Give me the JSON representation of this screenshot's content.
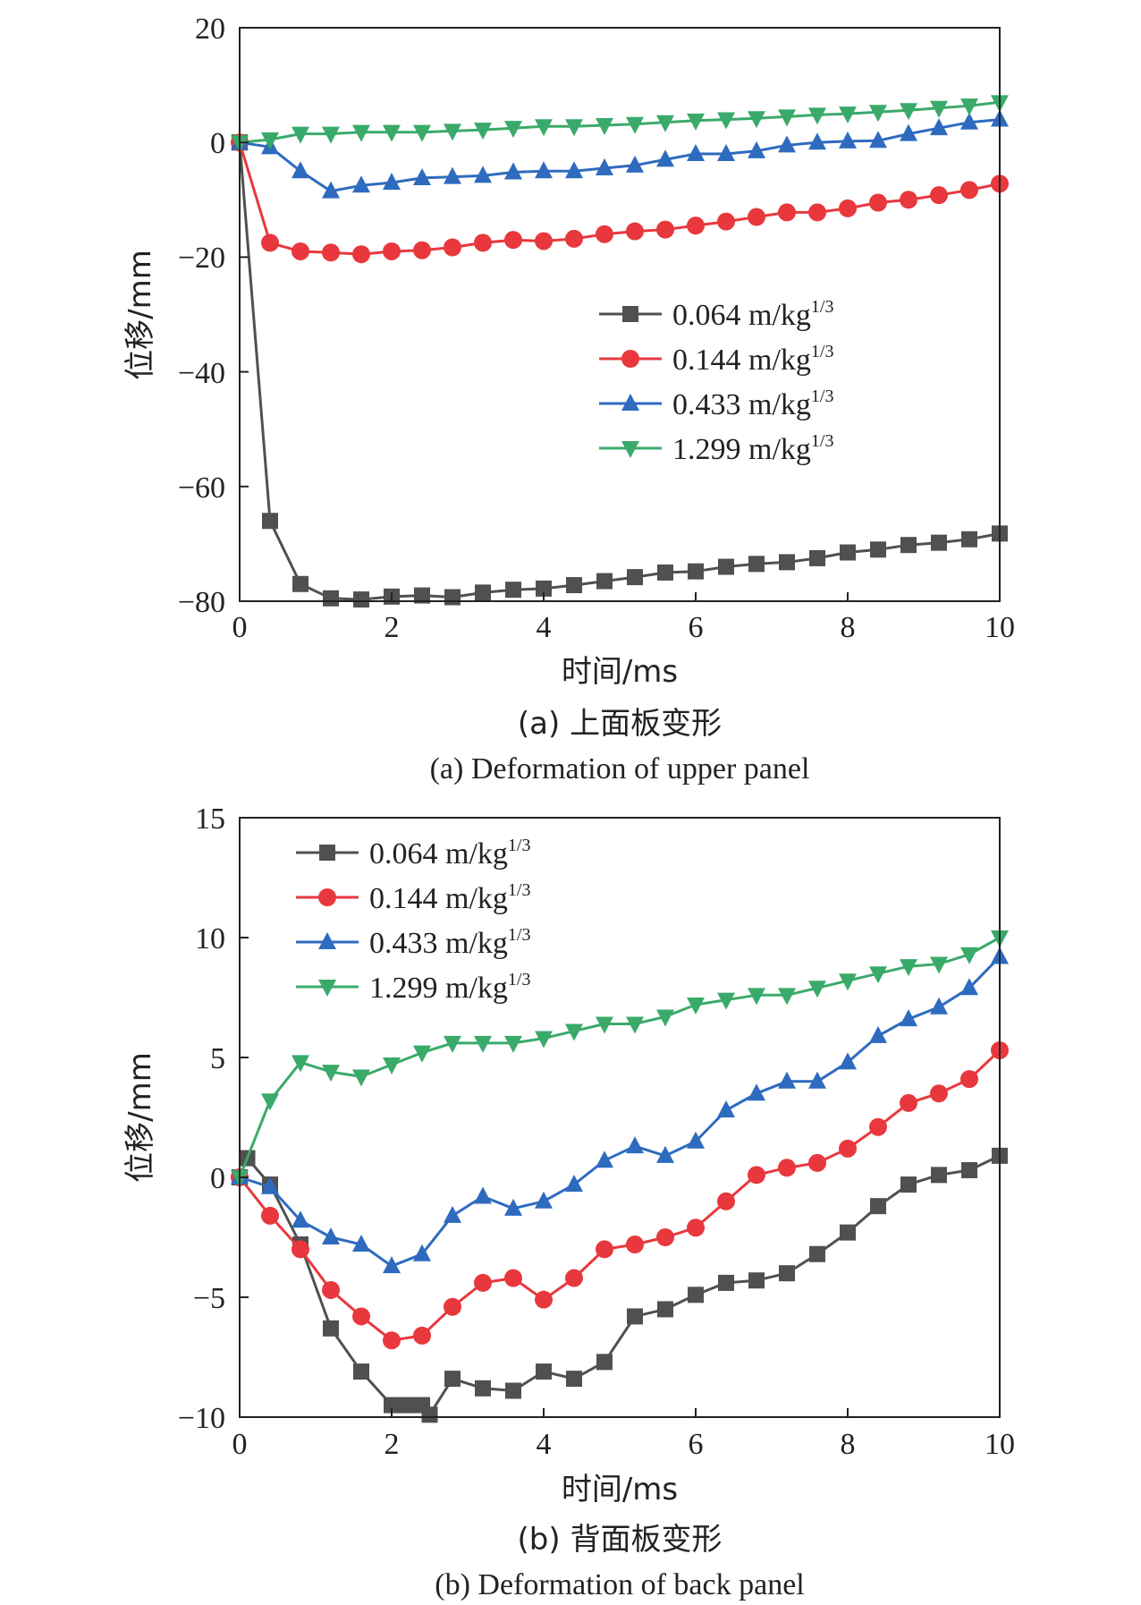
{
  "chart_data": [
    {
      "type": "line",
      "xlabel": "时间/ms",
      "ylabel": "位移/mm",
      "xlim": [
        0,
        10
      ],
      "ylim": [
        -80,
        20
      ],
      "xticks": [
        0,
        2,
        4,
        6,
        8,
        10
      ],
      "yticks": [
        -80,
        -60,
        -40,
        -20,
        0,
        20
      ],
      "xtick_labels": [
        "0",
        "2",
        "4",
        "6",
        "8",
        "10"
      ],
      "ytick_labels": [
        "−80",
        "−60",
        "−40",
        "−20",
        "0",
        "20"
      ],
      "legend_placement": "center-right",
      "caption_cn": "(a) 上面板变形",
      "caption_en": "(a) Deformation of  upper panel",
      "series": [
        {
          "name": "0.064 m/kg",
          "name_sup": "1/3",
          "color": "#505050",
          "marker": "square",
          "x": [
            0,
            0.4,
            0.8,
            1.2,
            1.6,
            2.0,
            2.4,
            2.8,
            3.2,
            3.6,
            4.0,
            4.4,
            4.8,
            5.2,
            5.6,
            6.0,
            6.4,
            6.8,
            7.2,
            7.6,
            8.0,
            8.4,
            8.8,
            9.2,
            9.6,
            10.0
          ],
          "y": [
            0,
            -66,
            -77,
            -79.5,
            -79.7,
            -79.2,
            -79,
            -79.3,
            -78.5,
            -78,
            -77.8,
            -77.2,
            -76.5,
            -75.8,
            -75,
            -74.8,
            -74,
            -73.5,
            -73.2,
            -72.5,
            -71.5,
            -71,
            -70.2,
            -69.8,
            -69.2,
            -68.2
          ]
        },
        {
          "name": "0.144 m/kg",
          "name_sup": "1/3",
          "color": "#e8383d",
          "marker": "circle",
          "x": [
            0,
            0.4,
            0.8,
            1.2,
            1.6,
            2.0,
            2.4,
            2.8,
            3.2,
            3.6,
            4.0,
            4.4,
            4.8,
            5.2,
            5.6,
            6.0,
            6.4,
            6.8,
            7.2,
            7.6,
            8.0,
            8.4,
            8.8,
            9.2,
            9.6,
            10.0
          ],
          "y": [
            0,
            -17.5,
            -19,
            -19.2,
            -19.5,
            -19,
            -18.8,
            -18.3,
            -17.5,
            -17,
            -17.2,
            -16.8,
            -16,
            -15.5,
            -15.2,
            -14.5,
            -13.8,
            -13,
            -12.2,
            -12.2,
            -11.5,
            -10.5,
            -10,
            -9.2,
            -8.3,
            -7.2
          ]
        },
        {
          "name": "0.433 m/kg",
          "name_sup": "1/3",
          "color": "#2e6bbf",
          "marker": "triangle-up",
          "x": [
            0,
            0.4,
            0.8,
            1.2,
            1.6,
            2.0,
            2.4,
            2.8,
            3.2,
            3.6,
            4.0,
            4.4,
            4.8,
            5.2,
            5.6,
            6.0,
            6.4,
            6.8,
            7.2,
            7.6,
            8.0,
            8.4,
            8.8,
            9.2,
            9.6,
            10.0
          ],
          "y": [
            0,
            -0.8,
            -5,
            -8.5,
            -7.5,
            -7,
            -6.2,
            -6,
            -5.8,
            -5.2,
            -5,
            -5,
            -4.5,
            -4,
            -3,
            -2,
            -2,
            -1.5,
            -0.5,
            0,
            0.2,
            0.3,
            1.5,
            2.5,
            3.5,
            4
          ]
        },
        {
          "name": "1.299 m/kg",
          "name_sup": "1/3",
          "color": "#3aaa6a",
          "marker": "triangle-down",
          "x": [
            0,
            0.4,
            0.8,
            1.2,
            1.6,
            2.0,
            2.4,
            2.8,
            3.2,
            3.6,
            4.0,
            4.4,
            4.8,
            5.2,
            5.6,
            6.0,
            6.4,
            6.8,
            7.2,
            7.6,
            8.0,
            8.4,
            8.8,
            9.2,
            9.6,
            10.0
          ],
          "y": [
            0,
            0.5,
            1.5,
            1.5,
            1.8,
            1.8,
            1.8,
            2,
            2.2,
            2.5,
            2.8,
            2.8,
            3,
            3.2,
            3.5,
            3.8,
            4,
            4.2,
            4.5,
            4.8,
            5,
            5.3,
            5.6,
            6,
            6.4,
            7
          ]
        }
      ]
    },
    {
      "type": "line",
      "xlabel": "时间/ms",
      "ylabel": "位移/mm",
      "xlim": [
        0,
        10
      ],
      "ylim": [
        -10,
        15
      ],
      "xticks": [
        0,
        2,
        4,
        6,
        8,
        10
      ],
      "yticks": [
        -10,
        -5,
        0,
        5,
        10,
        15
      ],
      "xtick_labels": [
        "0",
        "2",
        "4",
        "6",
        "8",
        "10"
      ],
      "ytick_labels": [
        "−10",
        "−5",
        "0",
        "5",
        "10",
        "15"
      ],
      "legend_placement": "top-left",
      "caption_cn": "(b) 背面板变形",
      "caption_en": "(b) Deformation of back panel",
      "series": [
        {
          "name": "0.064 m/kg",
          "name_sup": "1/3",
          "color": "#505050",
          "marker": "square",
          "x": [
            0,
            0.1,
            0.4,
            0.8,
            1.2,
            1.6,
            2.0,
            2.2,
            2.4,
            2.5,
            2.8,
            3.2,
            3.6,
            4.0,
            4.4,
            4.8,
            5.2,
            5.6,
            6.0,
            6.4,
            6.8,
            7.2,
            7.6,
            8.0,
            8.4,
            8.8,
            9.2,
            9.6,
            10.0
          ],
          "y": [
            0,
            0.8,
            -0.3,
            -2.8,
            -6.3,
            -8.1,
            -9.5,
            -9.5,
            -9.5,
            -9.9,
            -8.4,
            -8.8,
            -8.9,
            -8.1,
            -8.4,
            -7.7,
            -5.8,
            -5.5,
            -4.9,
            -4.4,
            -4.3,
            -4,
            -3.2,
            -2.3,
            -1.2,
            -0.3,
            0.1,
            0.3,
            0.9
          ]
        },
        {
          "name": "0.144 m/kg",
          "name_sup": "1/3",
          "color": "#e8383d",
          "marker": "circle",
          "x": [
            0,
            0.4,
            0.8,
            1.2,
            1.6,
            2.0,
            2.4,
            2.8,
            3.2,
            3.6,
            4.0,
            4.4,
            4.8,
            5.2,
            5.6,
            6.0,
            6.4,
            6.8,
            7.2,
            7.6,
            8.0,
            8.4,
            8.8,
            9.2,
            9.6,
            10.0
          ],
          "y": [
            0,
            -1.6,
            -3,
            -4.7,
            -5.8,
            -6.8,
            -6.6,
            -5.4,
            -4.4,
            -4.2,
            -5.1,
            -4.2,
            -3,
            -2.8,
            -2.5,
            -2.1,
            -1,
            0.1,
            0.4,
            0.6,
            1.2,
            2.1,
            3.1,
            3.5,
            4.1,
            5.3
          ]
        },
        {
          "name": "0.433 m/kg",
          "name_sup": "1/3",
          "color": "#2e6bbf",
          "marker": "triangle-up",
          "x": [
            0,
            0.4,
            0.8,
            1.2,
            1.6,
            2.0,
            2.4,
            2.8,
            3.2,
            3.6,
            4.0,
            4.4,
            4.8,
            5.2,
            5.6,
            6.0,
            6.4,
            6.8,
            7.2,
            7.6,
            8.0,
            8.4,
            8.8,
            9.2,
            9.6,
            10.0
          ],
          "y": [
            0,
            -0.4,
            -1.8,
            -2.5,
            -2.8,
            -3.7,
            -3.2,
            -1.6,
            -0.8,
            -1.3,
            -1,
            -0.3,
            0.7,
            1.3,
            0.9,
            1.5,
            2.8,
            3.5,
            4,
            4,
            4.8,
            5.9,
            6.6,
            7.1,
            7.9,
            9.2
          ]
        },
        {
          "name": "1.299 m/kg",
          "name_sup": "1/3",
          "color": "#3aaa6a",
          "marker": "triangle-down",
          "x": [
            0,
            0.4,
            0.8,
            1.2,
            1.6,
            2.0,
            2.4,
            2.8,
            3.2,
            3.6,
            4.0,
            4.4,
            4.8,
            5.2,
            5.6,
            6.0,
            6.4,
            6.8,
            7.2,
            7.6,
            8.0,
            8.4,
            8.8,
            9.2,
            9.6,
            10.0
          ],
          "y": [
            0,
            3.2,
            4.8,
            4.4,
            4.2,
            4.7,
            5.2,
            5.6,
            5.6,
            5.6,
            5.8,
            6.1,
            6.4,
            6.4,
            6.7,
            7.2,
            7.4,
            7.6,
            7.6,
            7.9,
            8.2,
            8.5,
            8.8,
            8.9,
            9.3,
            10
          ]
        }
      ]
    }
  ]
}
